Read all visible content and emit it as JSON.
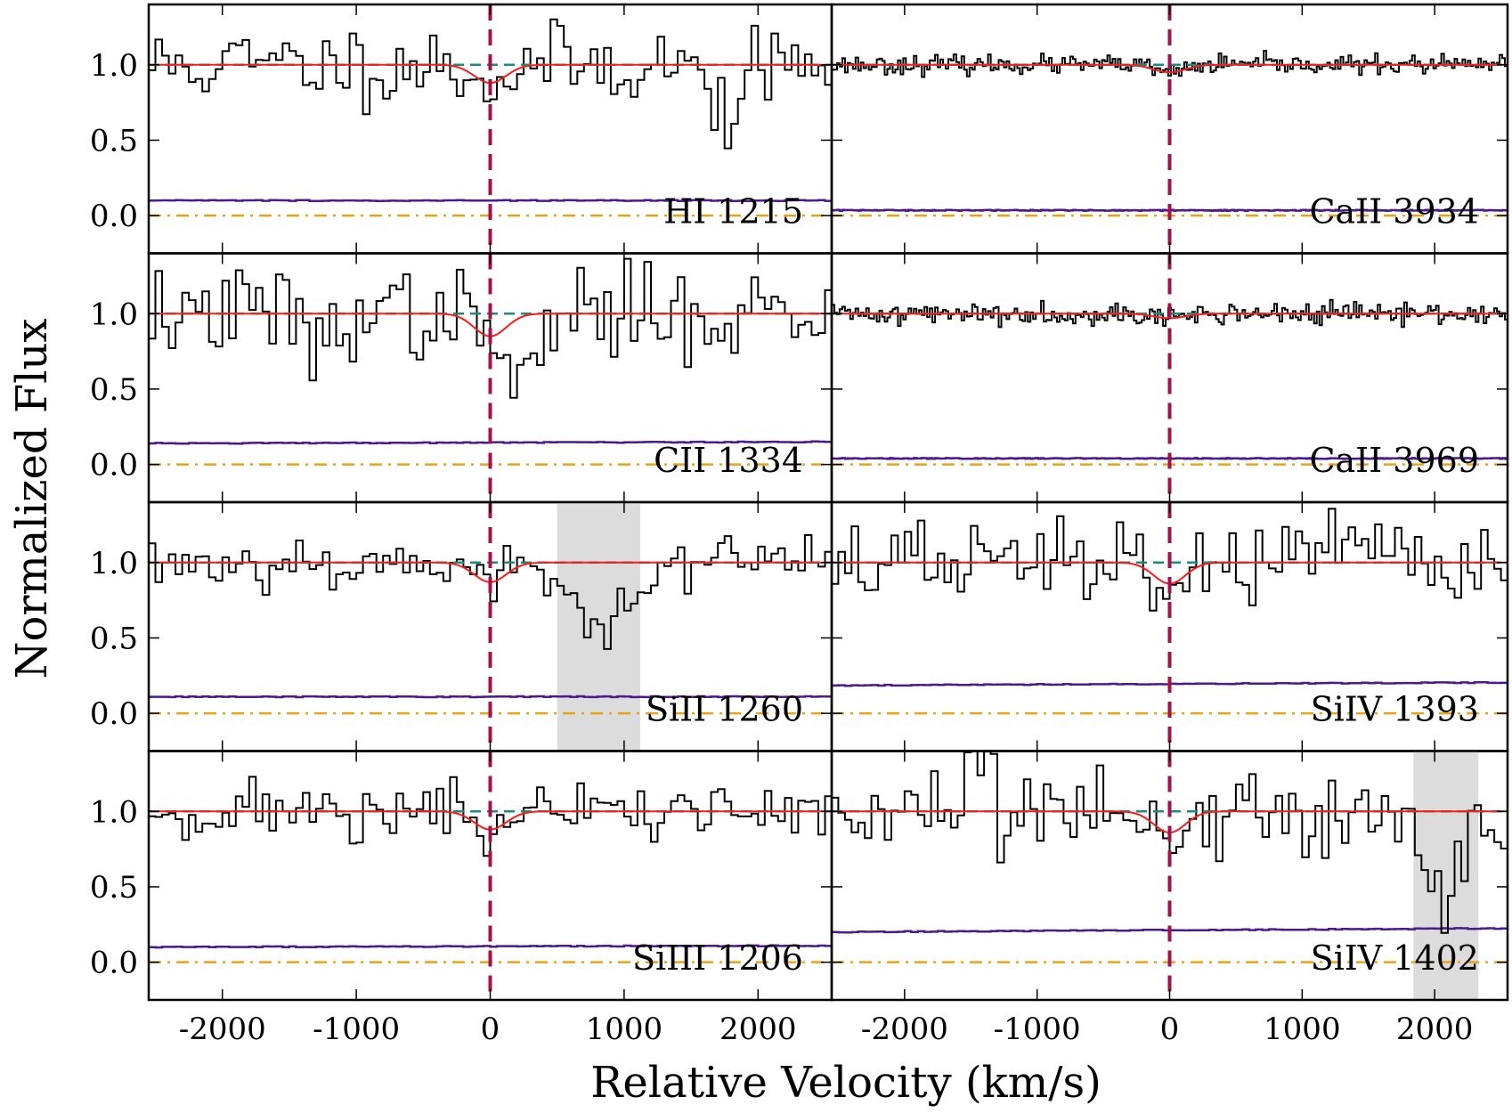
{
  "chart_data": {
    "type": "line",
    "title": "",
    "xlabel": "Relative Velocity (km/s)",
    "ylabel": "Normalized Flux",
    "xlim": [
      -2550,
      2550
    ],
    "ylim": [
      -0.25,
      1.4
    ],
    "xticks": [
      -2000,
      -1000,
      0,
      1000,
      2000
    ],
    "xtick_labels": [
      "-2000",
      "-1000",
      "0",
      "1000",
      "2000"
    ],
    "yticks": [
      0.0,
      0.5,
      1.0
    ],
    "ytick_labels": [
      "0.0",
      "0.5",
      "1.0"
    ],
    "layout": "4 rows x 2 columns of stacked panels sharing axes",
    "series_legend": {
      "flux": "observed normalized flux (black histogram)",
      "error": "flux uncertainty (purple)",
      "model": "absorption model (red)",
      "continuum": "continuum level 1.0 (teal dashed)",
      "zero": "zero flux level (orange dash-dot)",
      "systemic": "v = 0 marker (dashed crimson)"
    },
    "colors": {
      "flux": "#000000",
      "error": "#4b1a8c",
      "model": "#ff1a1a",
      "continuum": "#1a8c7c",
      "zero": "#e8a317",
      "systemic": "#a0124a",
      "mask": "#dcdcdc"
    },
    "panels": [
      {
        "label": "HI 1215",
        "bin": 50,
        "noise": 0.13,
        "error": 0.1,
        "error_slope": 0,
        "depth": 0.12,
        "seed": 11,
        "dips": [
          {
            "v": 1750,
            "w": 120,
            "d": 0.3
          }
        ],
        "mask": null
      },
      {
        "label": "CaII 3934",
        "bin": 20,
        "noise": 0.03,
        "error": 0.035,
        "error_slope": 0,
        "depth": 0.05,
        "seed": 23,
        "dips": [],
        "mask": null
      },
      {
        "label": "CII 1334",
        "bin": 50,
        "noise": 0.15,
        "error": 0.14,
        "error_slope": 0.01,
        "depth": 0.15,
        "seed": 37,
        "dips": [
          {
            "v": 250,
            "w": 150,
            "d": 0.35
          },
          {
            "v": -1300,
            "w": 60,
            "d": 0.3
          }
        ],
        "mask": null
      },
      {
        "label": "CaII 3969",
        "bin": 20,
        "noise": 0.035,
        "error": 0.04,
        "error_slope": 0,
        "depth": 0.03,
        "seed": 41,
        "dips": [],
        "mask": null
      },
      {
        "label": "SiII 1260",
        "bin": 50,
        "noise": 0.09,
        "error": 0.11,
        "error_slope": 0,
        "depth": 0.13,
        "seed": 53,
        "dips": [
          {
            "v": 800,
            "w": 250,
            "d": 0.35
          }
        ],
        "mask": [
          500,
          1120
        ]
      },
      {
        "label": "SiIV 1393",
        "bin": 50,
        "noise": 0.14,
        "error": 0.185,
        "error_slope": 0.02,
        "depth": 0.14,
        "seed": 67,
        "dips": [],
        "mask": null
      },
      {
        "label": "SiIII 1206",
        "bin": 50,
        "noise": 0.1,
        "error": 0.1,
        "error_slope": 0.01,
        "depth": 0.12,
        "seed": 71,
        "dips": [],
        "mask": null
      },
      {
        "label": "SiIV 1402",
        "bin": 50,
        "noise": 0.16,
        "error": 0.2,
        "error_slope": 0.025,
        "depth": 0.14,
        "seed": 83,
        "dips": [
          {
            "v": 2060,
            "w": 140,
            "d": 0.55
          }
        ],
        "mask": [
          1840,
          2330
        ]
      }
    ]
  }
}
